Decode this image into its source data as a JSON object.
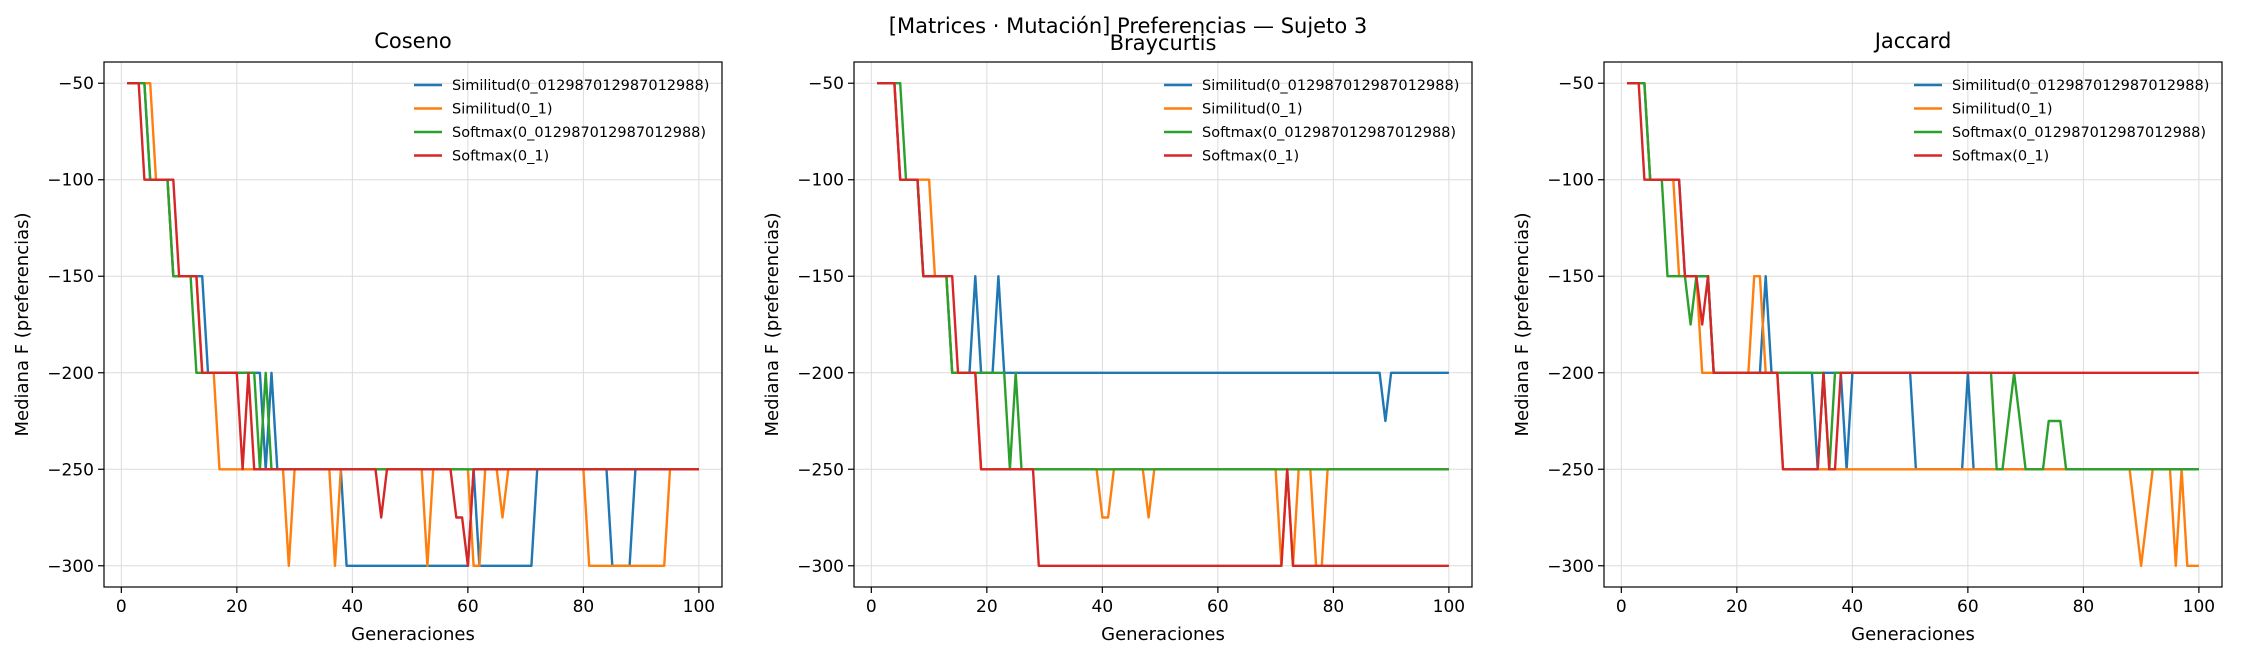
{
  "figure": {
    "suptitle": "[Matrices · Mutación] Preferencias — Sujeto 3"
  },
  "colors": {
    "Similitud(0_012987012987012988)": "#1f77b4",
    "Similitud(0_1)": "#ff7f0e",
    "Softmax(0_012987012987012988)": "#2ca02c",
    "Softmax(0_1)": "#d62728"
  },
  "chart_data": [
    {
      "type": "line",
      "title": "Coseno",
      "xlabel": "Generaciones",
      "ylabel": "Mediana F (preferencias)",
      "xlim": [
        -3,
        104
      ],
      "ylim": [
        -311,
        -39
      ],
      "xticks": [
        0,
        20,
        40,
        60,
        80,
        100
      ],
      "yticks": [
        -50,
        -100,
        -150,
        -200,
        -250,
        -300
      ],
      "grid": true,
      "legend": "top-right",
      "series": [
        {
          "name": "Similitud(0_012987012987012988)",
          "points": [
            [
              1,
              -50
            ],
            [
              4,
              -50
            ],
            [
              5,
              -100
            ],
            [
              8,
              -100
            ],
            [
              9,
              -150
            ],
            [
              14,
              -150
            ],
            [
              15,
              -200
            ],
            [
              24,
              -200
            ],
            [
              25,
              -250
            ],
            [
              26,
              -200
            ],
            [
              27,
              -250
            ],
            [
              38,
              -250
            ],
            [
              39,
              -300
            ],
            [
              60,
              -300
            ],
            [
              61,
              -250
            ],
            [
              62,
              -300
            ],
            [
              71,
              -300
            ],
            [
              72,
              -250
            ],
            [
              84,
              -250
            ],
            [
              85,
              -300
            ],
            [
              88,
              -300
            ],
            [
              89,
              -250
            ],
            [
              100,
              -250
            ]
          ]
        },
        {
          "name": "Similitud(0_1)",
          "points": [
            [
              1,
              -50
            ],
            [
              5,
              -50
            ],
            [
              6,
              -100
            ],
            [
              8,
              -100
            ],
            [
              9,
              -150
            ],
            [
              13,
              -150
            ],
            [
              14,
              -200
            ],
            [
              16,
              -200
            ],
            [
              17,
              -250
            ],
            [
              28,
              -250
            ],
            [
              29,
              -300
            ],
            [
              30,
              -250
            ],
            [
              36,
              -250
            ],
            [
              37,
              -300
            ],
            [
              38,
              -250
            ],
            [
              52,
              -250
            ],
            [
              53,
              -300
            ],
            [
              54,
              -250
            ],
            [
              60,
              -250
            ],
            [
              61,
              -300
            ],
            [
              62,
              -300
            ],
            [
              63,
              -250
            ],
            [
              65,
              -250
            ],
            [
              66,
              -275
            ],
            [
              67,
              -250
            ],
            [
              80,
              -250
            ],
            [
              81,
              -300
            ],
            [
              94,
              -300
            ],
            [
              95,
              -250
            ],
            [
              100,
              -250
            ]
          ]
        },
        {
          "name": "Softmax(0_012987012987012988)",
          "points": [
            [
              1,
              -50
            ],
            [
              4,
              -50
            ],
            [
              5,
              -100
            ],
            [
              8,
              -100
            ],
            [
              9,
              -150
            ],
            [
              12,
              -150
            ],
            [
              13,
              -200
            ],
            [
              23,
              -200
            ],
            [
              24,
              -250
            ],
            [
              25,
              -200
            ],
            [
              26,
              -250
            ],
            [
              100,
              -250
            ]
          ]
        },
        {
          "name": "Softmax(0_1)",
          "points": [
            [
              1,
              -50
            ],
            [
              3,
              -50
            ],
            [
              4,
              -100
            ],
            [
              7,
              -100
            ],
            [
              8,
              -100
            ],
            [
              9,
              -100
            ],
            [
              10,
              -150
            ],
            [
              13,
              -150
            ],
            [
              14,
              -200
            ],
            [
              20,
              -200
            ],
            [
              21,
              -250
            ],
            [
              22,
              -200
            ],
            [
              23,
              -250
            ],
            [
              44,
              -250
            ],
            [
              45,
              -275
            ],
            [
              46,
              -250
            ],
            [
              57,
              -250
            ],
            [
              58,
              -275
            ],
            [
              59,
              -275
            ],
            [
              60,
              -300
            ],
            [
              61,
              -250
            ],
            [
              100,
              -250
            ]
          ]
        }
      ]
    },
    {
      "type": "line",
      "title": "Braycurtis",
      "xlabel": "Generaciones",
      "ylabel": "Mediana F (preferencias)",
      "xlim": [
        -3,
        104
      ],
      "ylim": [
        -311,
        -39
      ],
      "xticks": [
        0,
        20,
        40,
        60,
        80,
        100
      ],
      "yticks": [
        -50,
        -100,
        -150,
        -200,
        -250,
        -300
      ],
      "grid": true,
      "legend": "top-right",
      "series": [
        {
          "name": "Similitud(0_012987012987012988)",
          "points": [
            [
              1,
              -50
            ],
            [
              4,
              -50
            ],
            [
              5,
              -100
            ],
            [
              8,
              -100
            ],
            [
              9,
              -150
            ],
            [
              10,
              -150
            ],
            [
              11,
              -150
            ],
            [
              13,
              -150
            ],
            [
              14,
              -200
            ],
            [
              17,
              -200
            ],
            [
              18,
              -150
            ],
            [
              19,
              -200
            ],
            [
              21,
              -200
            ],
            [
              22,
              -150
            ],
            [
              23,
              -200
            ],
            [
              88,
              -200
            ],
            [
              89,
              -225
            ],
            [
              90,
              -200
            ],
            [
              100,
              -200
            ]
          ]
        },
        {
          "name": "Similitud(0_1)",
          "points": [
            [
              1,
              -50
            ],
            [
              4,
              -50
            ],
            [
              5,
              -100
            ],
            [
              10,
              -100
            ],
            [
              11,
              -150
            ],
            [
              13,
              -150
            ],
            [
              14,
              -200
            ],
            [
              18,
              -200
            ],
            [
              19,
              -250
            ],
            [
              39,
              -250
            ],
            [
              40,
              -275
            ],
            [
              41,
              -275
            ],
            [
              42,
              -250
            ],
            [
              47,
              -250
            ],
            [
              48,
              -275
            ],
            [
              49,
              -250
            ],
            [
              70,
              -250
            ],
            [
              71,
              -300
            ],
            [
              72,
              -250
            ],
            [
              73,
              -300
            ],
            [
              74,
              -250
            ],
            [
              76,
              -250
            ],
            [
              77,
              -300
            ],
            [
              78,
              -300
            ],
            [
              79,
              -250
            ],
            [
              100,
              -250
            ]
          ]
        },
        {
          "name": "Softmax(0_012987012987012988)",
          "points": [
            [
              1,
              -50
            ],
            [
              5,
              -50
            ],
            [
              6,
              -100
            ],
            [
              8,
              -100
            ],
            [
              9,
              -150
            ],
            [
              13,
              -150
            ],
            [
              14,
              -200
            ],
            [
              23,
              -200
            ],
            [
              24,
              -250
            ],
            [
              25,
              -200
            ],
            [
              26,
              -250
            ],
            [
              100,
              -250
            ]
          ]
        },
        {
          "name": "Softmax(0_1)",
          "points": [
            [
              1,
              -50
            ],
            [
              4,
              -50
            ],
            [
              5,
              -100
            ],
            [
              8,
              -100
            ],
            [
              9,
              -150
            ],
            [
              14,
              -150
            ],
            [
              15,
              -200
            ],
            [
              18,
              -200
            ],
            [
              19,
              -250
            ],
            [
              28,
              -250
            ],
            [
              29,
              -300
            ],
            [
              71,
              -300
            ],
            [
              72,
              -250
            ],
            [
              73,
              -300
            ],
            [
              100,
              -300
            ]
          ]
        }
      ]
    },
    {
      "type": "line",
      "title": "Jaccard",
      "xlabel": "Generaciones",
      "ylabel": "Mediana F (preferencias)",
      "xlim": [
        -3,
        104
      ],
      "ylim": [
        -311,
        -39
      ],
      "xticks": [
        0,
        20,
        40,
        60,
        80,
        100
      ],
      "yticks": [
        -50,
        -100,
        -150,
        -200,
        -250,
        -300
      ],
      "grid": true,
      "legend": "top-right",
      "series": [
        {
          "name": "Similitud(0_012987012987012988)",
          "points": [
            [
              1,
              -50
            ],
            [
              4,
              -50
            ],
            [
              5,
              -100
            ],
            [
              10,
              -100
            ],
            [
              11,
              -150
            ],
            [
              15,
              -150
            ],
            [
              16,
              -200
            ],
            [
              24,
              -200
            ],
            [
              25,
              -150
            ],
            [
              26,
              -200
            ],
            [
              33,
              -200
            ],
            [
              34,
              -250
            ],
            [
              35,
              -200
            ],
            [
              38,
              -200
            ],
            [
              39,
              -250
            ],
            [
              40,
              -200
            ],
            [
              50,
              -200
            ],
            [
              51,
              -250
            ],
            [
              59,
              -250
            ],
            [
              60,
              -200
            ],
            [
              61,
              -250
            ],
            [
              100,
              -250
            ]
          ]
        },
        {
          "name": "Similitud(0_1)",
          "points": [
            [
              1,
              -50
            ],
            [
              4,
              -50
            ],
            [
              5,
              -100
            ],
            [
              9,
              -100
            ],
            [
              10,
              -150
            ],
            [
              13,
              -150
            ],
            [
              14,
              -200
            ],
            [
              19,
              -200
            ],
            [
              20,
              -200
            ],
            [
              22,
              -200
            ],
            [
              23,
              -150
            ],
            [
              24,
              -150
            ],
            [
              25,
              -200
            ],
            [
              27,
              -200
            ],
            [
              28,
              -250
            ],
            [
              88,
              -250
            ],
            [
              90,
              -300
            ],
            [
              92,
              -250
            ],
            [
              95,
              -250
            ],
            [
              96,
              -300
            ],
            [
              97,
              -250
            ],
            [
              98,
              -300
            ],
            [
              100,
              -300
            ]
          ]
        },
        {
          "name": "Softmax(0_012987012987012988)",
          "points": [
            [
              1,
              -50
            ],
            [
              4,
              -50
            ],
            [
              5,
              -100
            ],
            [
              7,
              -100
            ],
            [
              8,
              -150
            ],
            [
              11,
              -150
            ],
            [
              12,
              -175
            ],
            [
              13,
              -150
            ],
            [
              15,
              -150
            ],
            [
              16,
              -200
            ],
            [
              35,
              -200
            ],
            [
              36,
              -250
            ],
            [
              37,
              -200
            ],
            [
              64,
              -200
            ],
            [
              65,
              -250
            ],
            [
              66,
              -250
            ],
            [
              67,
              -225
            ],
            [
              68,
              -200
            ],
            [
              69,
              -225
            ],
            [
              70,
              -250
            ],
            [
              73,
              -250
            ],
            [
              74,
              -225
            ],
            [
              76,
              -225
            ],
            [
              77,
              -250
            ],
            [
              100,
              -250
            ]
          ]
        },
        {
          "name": "Softmax(0_1)",
          "points": [
            [
              1,
              -50
            ],
            [
              3,
              -50
            ],
            [
              4,
              -100
            ],
            [
              10,
              -100
            ],
            [
              11,
              -150
            ],
            [
              13,
              -150
            ],
            [
              14,
              -175
            ],
            [
              15,
              -150
            ],
            [
              16,
              -200
            ],
            [
              27,
              -200
            ],
            [
              28,
              -250
            ],
            [
              34,
              -250
            ],
            [
              35,
              -200
            ],
            [
              36,
              -250
            ],
            [
              37,
              -250
            ],
            [
              38,
              -200
            ],
            [
              100,
              -200
            ]
          ]
        }
      ]
    }
  ]
}
